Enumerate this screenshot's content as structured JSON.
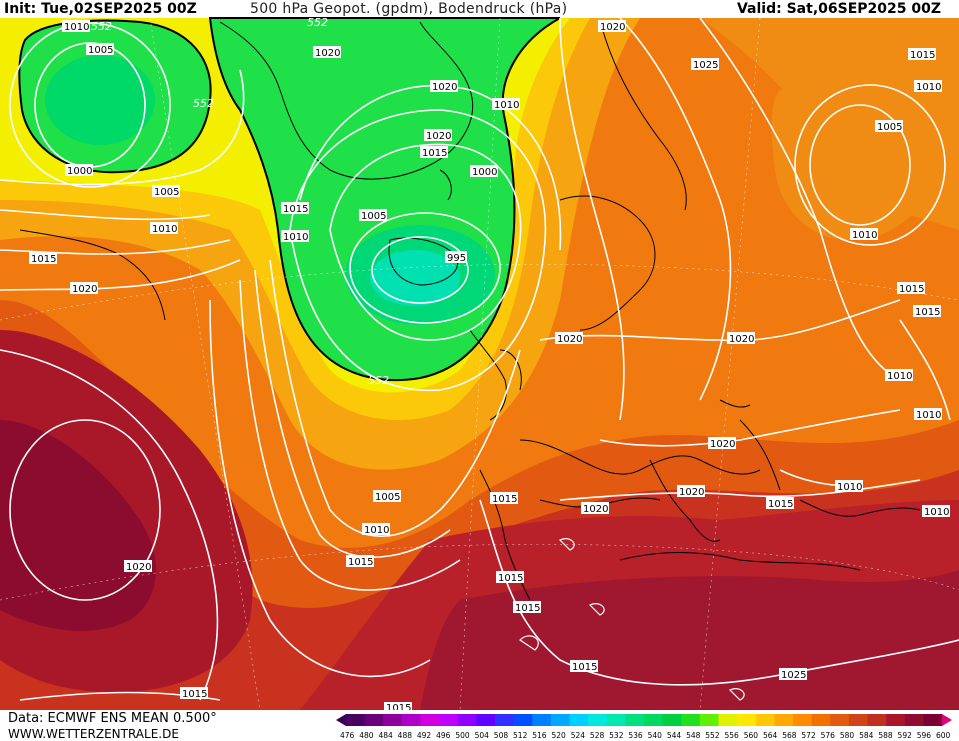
{
  "header": {
    "init": "Init: Tue,02SEP2025 00Z",
    "title": "500 hPa Geopot. (gpdm), Bodendruck (hPa)",
    "valid": "Valid: Sat,06SEP2025 00Z"
  },
  "footer": {
    "data": "Data: ECMWF ENS MEAN 0.500°",
    "site": "WWW.WETTERZENTRALE.DE"
  },
  "geopotential_label": "552",
  "isobar_labels": [
    {
      "text": "1010",
      "id": "i1"
    },
    {
      "text": "552",
      "id": "i2"
    },
    {
      "text": "1005",
      "id": "i3"
    },
    {
      "text": "1000",
      "id": "i4"
    },
    {
      "text": "1005",
      "id": "i5"
    },
    {
      "text": "1010",
      "id": "i6"
    },
    {
      "text": "1015",
      "id": "i7"
    },
    {
      "text": "1020",
      "id": "i8"
    },
    {
      "text": "1020",
      "id": "i9"
    },
    {
      "text": "1020",
      "id": "i10"
    },
    {
      "text": "1020",
      "id": "i11"
    },
    {
      "text": "1015",
      "id": "i12"
    },
    {
      "text": "1000",
      "id": "i13"
    },
    {
      "text": "1015",
      "id": "i14"
    },
    {
      "text": "1010",
      "id": "i15"
    },
    {
      "text": "1005",
      "id": "i16"
    },
    {
      "text": "995",
      "id": "i17"
    },
    {
      "text": "1010",
      "id": "i18"
    },
    {
      "text": "1020",
      "id": "i19"
    },
    {
      "text": "1025",
      "id": "i20"
    },
    {
      "text": "1015",
      "id": "i21"
    },
    {
      "text": "1010",
      "id": "i22"
    },
    {
      "text": "1005",
      "id": "i23"
    },
    {
      "text": "1010",
      "id": "i24"
    },
    {
      "text": "1015",
      "id": "i25"
    },
    {
      "text": "1015",
      "id": "i26"
    },
    {
      "text": "1020",
      "id": "i27"
    },
    {
      "text": "1020",
      "id": "i28"
    },
    {
      "text": "1010",
      "id": "i29"
    },
    {
      "text": "1010",
      "id": "i30"
    },
    {
      "text": "1020",
      "id": "i31"
    },
    {
      "text": "1020",
      "id": "i32"
    },
    {
      "text": "1010",
      "id": "i33"
    },
    {
      "text": "1015",
      "id": "i34"
    },
    {
      "text": "1010",
      "id": "i35"
    },
    {
      "text": "1005",
      "id": "i36"
    },
    {
      "text": "1015",
      "id": "i37"
    },
    {
      "text": "1020",
      "id": "i38"
    },
    {
      "text": "1010",
      "id": "i39"
    },
    {
      "text": "1015",
      "id": "i40"
    },
    {
      "text": "1015",
      "id": "i41"
    },
    {
      "text": "1015",
      "id": "i42"
    },
    {
      "text": "1015",
      "id": "i43"
    },
    {
      "text": "1025",
      "id": "i44"
    },
    {
      "text": "1020",
      "id": "i45"
    },
    {
      "text": "1015",
      "id": "i46"
    }
  ],
  "colorbar": {
    "ticks": [
      "476",
      "480",
      "484",
      "488",
      "492",
      "496",
      "500",
      "504",
      "508",
      "512",
      "516",
      "520",
      "524",
      "528",
      "532",
      "536",
      "540",
      "544",
      "548",
      "552",
      "556",
      "560",
      "564",
      "568",
      "572",
      "576",
      "580",
      "584",
      "588",
      "592",
      "596",
      "600"
    ],
    "colors": [
      "#4a0060",
      "#6a007a",
      "#8c00a0",
      "#b000c8",
      "#d000e0",
      "#c000ff",
      "#9000ff",
      "#6000ff",
      "#3030ff",
      "#0050ff",
      "#0080ff",
      "#00a8ff",
      "#00d0ff",
      "#00e8e0",
      "#00e8b0",
      "#00e080",
      "#00d860",
      "#00d040",
      "#20e020",
      "#60f000",
      "#e0f000",
      "#ffe800",
      "#ffc800",
      "#ffa800",
      "#ff8c00",
      "#f07000",
      "#e05a10",
      "#d04418",
      "#c03020",
      "#a81828",
      "#900c30",
      "#7a0030"
    ]
  }
}
